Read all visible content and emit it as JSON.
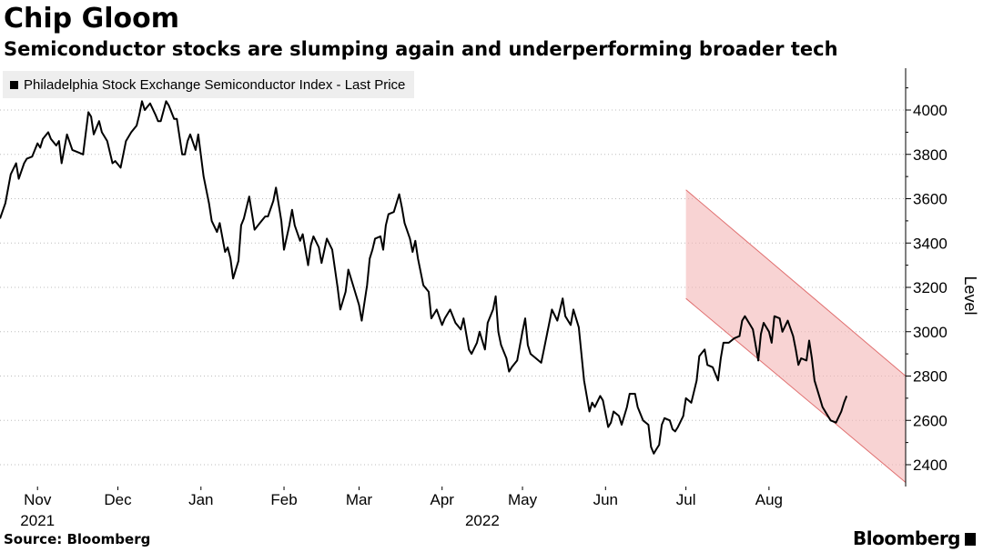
{
  "header": {
    "title": "Chip Gloom",
    "subtitle": "Semiconductor stocks are slumping again and underperforming broader tech"
  },
  "footer": {
    "source": "Source: Bloomberg",
    "brand": "Bloomberg"
  },
  "chart_data": {
    "type": "line",
    "title": "Chip Gloom",
    "subtitle": "Semiconductor stocks are slumping again and underperforming broader tech",
    "ylabel": "Level",
    "ylim": [
      2320,
      4150
    ],
    "yticks": [
      2400,
      2600,
      2800,
      3000,
      3200,
      3400,
      3600,
      3800,
      4000
    ],
    "grid": "horizontal dotted",
    "legend": "top-left",
    "x_start": "2021-10-18",
    "x_end": "2022-09-02",
    "month_ticks": [
      {
        "label": "Nov",
        "day": 14
      },
      {
        "label": "Dec",
        "day": 44
      },
      {
        "label": "Jan",
        "day": 75
      },
      {
        "label": "Feb",
        "day": 106
      },
      {
        "label": "Mar",
        "day": 134
      },
      {
        "label": "Apr",
        "day": 165
      },
      {
        "label": "May",
        "day": 195
      },
      {
        "label": "Jun",
        "day": 226
      },
      {
        "label": "Jul",
        "day": 256
      },
      {
        "label": "Aug",
        "day": 287
      }
    ],
    "year_labels": [
      {
        "label": "2021",
        "day": 14
      },
      {
        "label": "2022",
        "day": 180
      }
    ],
    "series": [
      {
        "name": "Philadelphia Stock Exchange Semiconductor Index - Last Price",
        "color": "#000000",
        "points": [
          [
            0,
            3510
          ],
          [
            2,
            3580
          ],
          [
            4,
            3710
          ],
          [
            6,
            3760
          ],
          [
            7,
            3690
          ],
          [
            9,
            3760
          ],
          [
            10,
            3780
          ],
          [
            12,
            3790
          ],
          [
            14,
            3850
          ],
          [
            15,
            3830
          ],
          [
            16,
            3870
          ],
          [
            18,
            3900
          ],
          [
            19,
            3870
          ],
          [
            21,
            3840
          ],
          [
            22,
            3860
          ],
          [
            23,
            3760
          ],
          [
            25,
            3890
          ],
          [
            27,
            3820
          ],
          [
            29,
            3810
          ],
          [
            31,
            3800
          ],
          [
            33,
            3990
          ],
          [
            34,
            3970
          ],
          [
            35,
            3890
          ],
          [
            37,
            3950
          ],
          [
            38,
            3900
          ],
          [
            40,
            3860
          ],
          [
            42,
            3760
          ],
          [
            43,
            3770
          ],
          [
            45,
            3740
          ],
          [
            47,
            3860
          ],
          [
            49,
            3900
          ],
          [
            51,
            3930
          ],
          [
            52,
            3980
          ],
          [
            53,
            4040
          ],
          [
            54,
            4000
          ],
          [
            56,
            4030
          ],
          [
            58,
            3980
          ],
          [
            59,
            3950
          ],
          [
            60,
            3950
          ],
          [
            62,
            4040
          ],
          [
            63,
            4020
          ],
          [
            65,
            3960
          ],
          [
            66,
            3960
          ],
          [
            68,
            3800
          ],
          [
            69,
            3800
          ],
          [
            70,
            3860
          ],
          [
            71,
            3890
          ],
          [
            73,
            3820
          ],
          [
            74,
            3890
          ],
          [
            76,
            3700
          ],
          [
            78,
            3580
          ],
          [
            79,
            3500
          ],
          [
            81,
            3450
          ],
          [
            82,
            3490
          ],
          [
            84,
            3360
          ],
          [
            85,
            3380
          ],
          [
            86,
            3330
          ],
          [
            87,
            3240
          ],
          [
            89,
            3320
          ],
          [
            90,
            3480
          ],
          [
            91,
            3510
          ],
          [
            93,
            3610
          ],
          [
            95,
            3460
          ],
          [
            97,
            3490
          ],
          [
            99,
            3520
          ],
          [
            100,
            3520
          ],
          [
            102,
            3590
          ],
          [
            103,
            3650
          ],
          [
            105,
            3500
          ],
          [
            106,
            3370
          ],
          [
            108,
            3480
          ],
          [
            109,
            3550
          ],
          [
            110,
            3480
          ],
          [
            112,
            3410
          ],
          [
            113,
            3440
          ],
          [
            115,
            3300
          ],
          [
            116,
            3390
          ],
          [
            117,
            3430
          ],
          [
            119,
            3380
          ],
          [
            120,
            3310
          ],
          [
            122,
            3420
          ],
          [
            124,
            3370
          ],
          [
            126,
            3200
          ],
          [
            127,
            3100
          ],
          [
            129,
            3180
          ],
          [
            130,
            3280
          ],
          [
            132,
            3200
          ],
          [
            134,
            3120
          ],
          [
            135,
            3050
          ],
          [
            137,
            3210
          ],
          [
            138,
            3330
          ],
          [
            139,
            3370
          ],
          [
            140,
            3420
          ],
          [
            142,
            3430
          ],
          [
            143,
            3370
          ],
          [
            144,
            3480
          ],
          [
            145,
            3530
          ],
          [
            147,
            3540
          ],
          [
            149,
            3620
          ],
          [
            150,
            3560
          ],
          [
            151,
            3490
          ],
          [
            153,
            3420
          ],
          [
            154,
            3360
          ],
          [
            155,
            3410
          ],
          [
            156,
            3330
          ],
          [
            158,
            3210
          ],
          [
            160,
            3180
          ],
          [
            161,
            3060
          ],
          [
            163,
            3100
          ],
          [
            165,
            3030
          ],
          [
            166,
            3060
          ],
          [
            168,
            3100
          ],
          [
            170,
            3040
          ],
          [
            172,
            3010
          ],
          [
            173,
            3060
          ],
          [
            175,
            2920
          ],
          [
            176,
            2900
          ],
          [
            178,
            2950
          ],
          [
            179,
            3000
          ],
          [
            181,
            2920
          ],
          [
            182,
            3040
          ],
          [
            184,
            3100
          ],
          [
            185,
            3160
          ],
          [
            186,
            3000
          ],
          [
            187,
            2940
          ],
          [
            189,
            2880
          ],
          [
            190,
            2820
          ],
          [
            191,
            2840
          ],
          [
            193,
            2870
          ],
          [
            195,
            3000
          ],
          [
            196,
            3060
          ],
          [
            197,
            2940
          ],
          [
            198,
            2900
          ],
          [
            200,
            2880
          ],
          [
            202,
            2860
          ],
          [
            203,
            2920
          ],
          [
            205,
            3040
          ],
          [
            206,
            3100
          ],
          [
            208,
            3050
          ],
          [
            209,
            3100
          ],
          [
            210,
            3150
          ],
          [
            211,
            3070
          ],
          [
            213,
            3030
          ],
          [
            214,
            3100
          ],
          [
            216,
            3020
          ],
          [
            217,
            2900
          ],
          [
            218,
            2780
          ],
          [
            220,
            2640
          ],
          [
            221,
            2680
          ],
          [
            222,
            2660
          ],
          [
            224,
            2710
          ],
          [
            225,
            2690
          ],
          [
            227,
            2570
          ],
          [
            228,
            2590
          ],
          [
            229,
            2640
          ],
          [
            231,
            2620
          ],
          [
            232,
            2580
          ],
          [
            234,
            2660
          ],
          [
            235,
            2720
          ],
          [
            237,
            2720
          ],
          [
            238,
            2660
          ],
          [
            240,
            2600
          ],
          [
            242,
            2580
          ],
          [
            243,
            2480
          ],
          [
            244,
            2450
          ],
          [
            245,
            2470
          ],
          [
            246,
            2490
          ],
          [
            247,
            2580
          ],
          [
            248,
            2610
          ],
          [
            250,
            2600
          ],
          [
            251,
            2560
          ],
          [
            252,
            2550
          ],
          [
            253,
            2570
          ],
          [
            255,
            2620
          ],
          [
            256,
            2700
          ],
          [
            258,
            2680
          ],
          [
            260,
            2780
          ],
          [
            261,
            2890
          ],
          [
            263,
            2920
          ],
          [
            264,
            2850
          ],
          [
            266,
            2840
          ],
          [
            268,
            2780
          ],
          [
            269,
            2880
          ],
          [
            270,
            2950
          ],
          [
            272,
            2950
          ],
          [
            274,
            2970
          ],
          [
            276,
            2980
          ],
          [
            277,
            3050
          ],
          [
            278,
            3070
          ],
          [
            280,
            3030
          ],
          [
            281,
            3010
          ],
          [
            283,
            2870
          ],
          [
            284,
            2990
          ],
          [
            285,
            3040
          ],
          [
            287,
            3000
          ],
          [
            288,
            2950
          ],
          [
            289,
            3070
          ],
          [
            291,
            3060
          ],
          [
            292,
            3000
          ],
          [
            294,
            3050
          ],
          [
            296,
            2980
          ],
          [
            297,
            2920
          ],
          [
            298,
            2850
          ],
          [
            299,
            2880
          ],
          [
            301,
            2870
          ],
          [
            302,
            2960
          ],
          [
            303,
            2880
          ],
          [
            304,
            2780
          ],
          [
            306,
            2700
          ],
          [
            307,
            2660
          ],
          [
            309,
            2620
          ],
          [
            310,
            2600
          ],
          [
            312,
            2590
          ],
          [
            314,
            2640
          ],
          [
            315,
            2680
          ],
          [
            316,
            2710
          ]
        ]
      }
    ],
    "annotations": [
      {
        "type": "trend-channel",
        "color": "#f4b6b6",
        "upper_line": [
          [
            256,
            3640
          ],
          [
            338,
            2800
          ]
        ],
        "lower_line": [
          [
            256,
            3150
          ],
          [
            338,
            2320
          ]
        ]
      }
    ]
  }
}
